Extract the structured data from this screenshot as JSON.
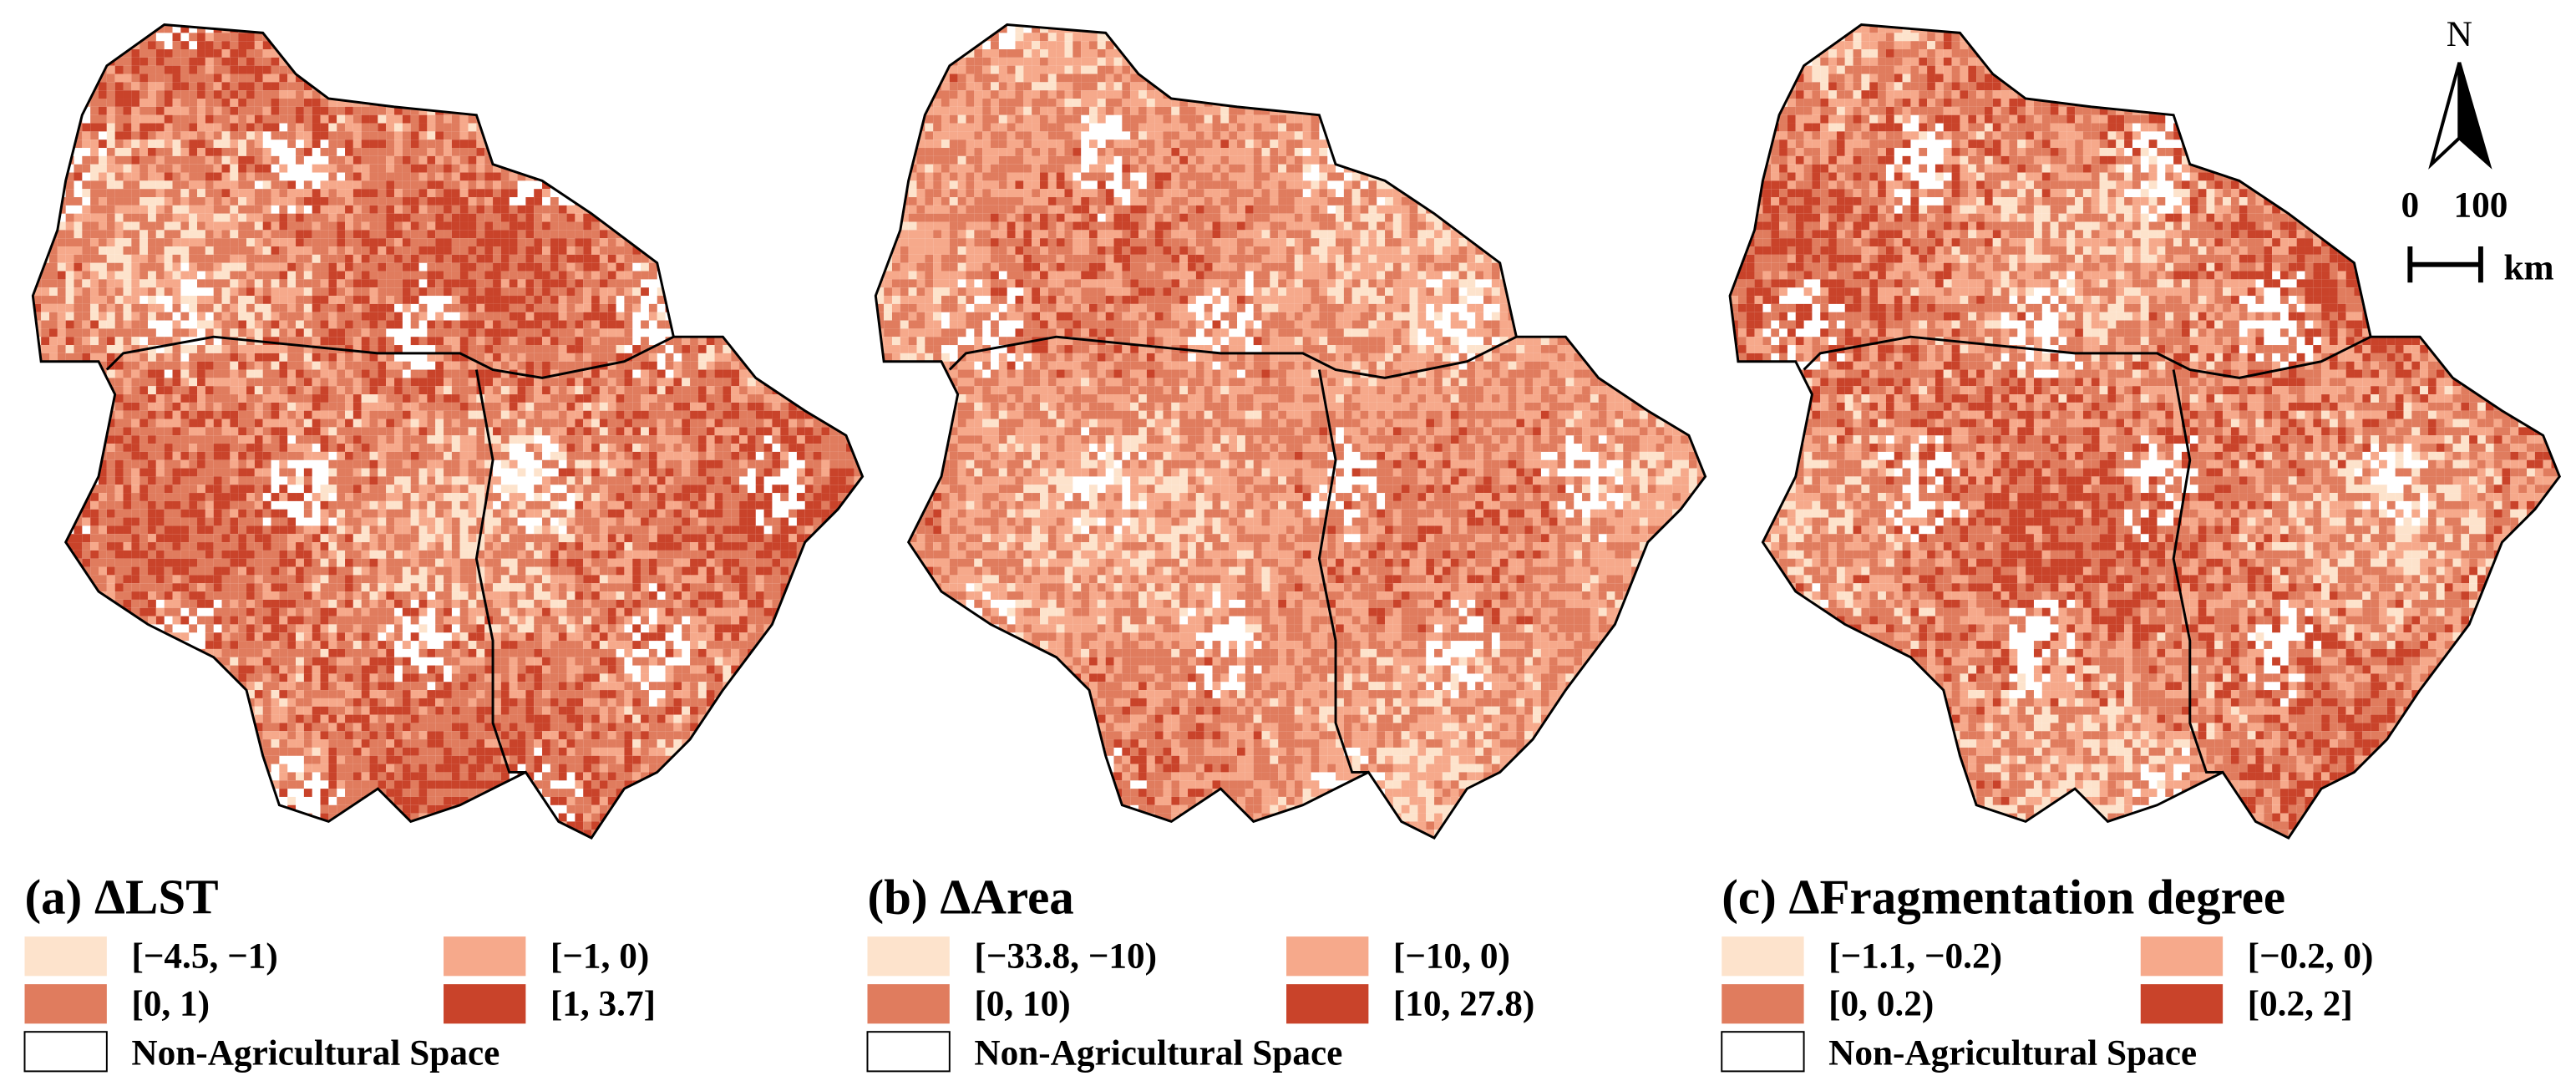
{
  "panels": [
    {
      "title": "(a) ΔLST",
      "legend": [
        {
          "label": "[−4.5, −1)",
          "color": "#fde3cc"
        },
        {
          "label": "[−1, 0)",
          "color": "#f6a98b"
        },
        {
          "label": "[0, 1)",
          "color": "#e07c5e"
        },
        {
          "label": "[1, 3.7]",
          "color": "#c9432a"
        }
      ],
      "non_agricultural": "Non-Agricultural Space"
    },
    {
      "title": "(b) ΔArea",
      "legend": [
        {
          "label": "[−33.8, −10)",
          "color": "#fde3cc"
        },
        {
          "label": "[−10, 0)",
          "color": "#f6a98b"
        },
        {
          "label": "[0, 10)",
          "color": "#e07c5e"
        },
        {
          "label": "[10, 27.8)",
          "color": "#c9432a"
        }
      ],
      "non_agricultural": "Non-Agricultural Space"
    },
    {
      "title": "(c) ΔFragmentation degree",
      "legend": [
        {
          "label": "[−1.1, −0.2)",
          "color": "#fde3cc"
        },
        {
          "label": "[−0.2, 0)",
          "color": "#f6a98b"
        },
        {
          "label": "[0, 0.2)",
          "color": "#e07c5e"
        },
        {
          "label": "[0.2, 2]",
          "color": "#c9432a"
        }
      ],
      "non_agricultural": "Non-Agricultural Space"
    }
  ],
  "north_label": "N",
  "scale_labels": [
    "0",
    "100"
  ],
  "scale_unit": "km"
}
